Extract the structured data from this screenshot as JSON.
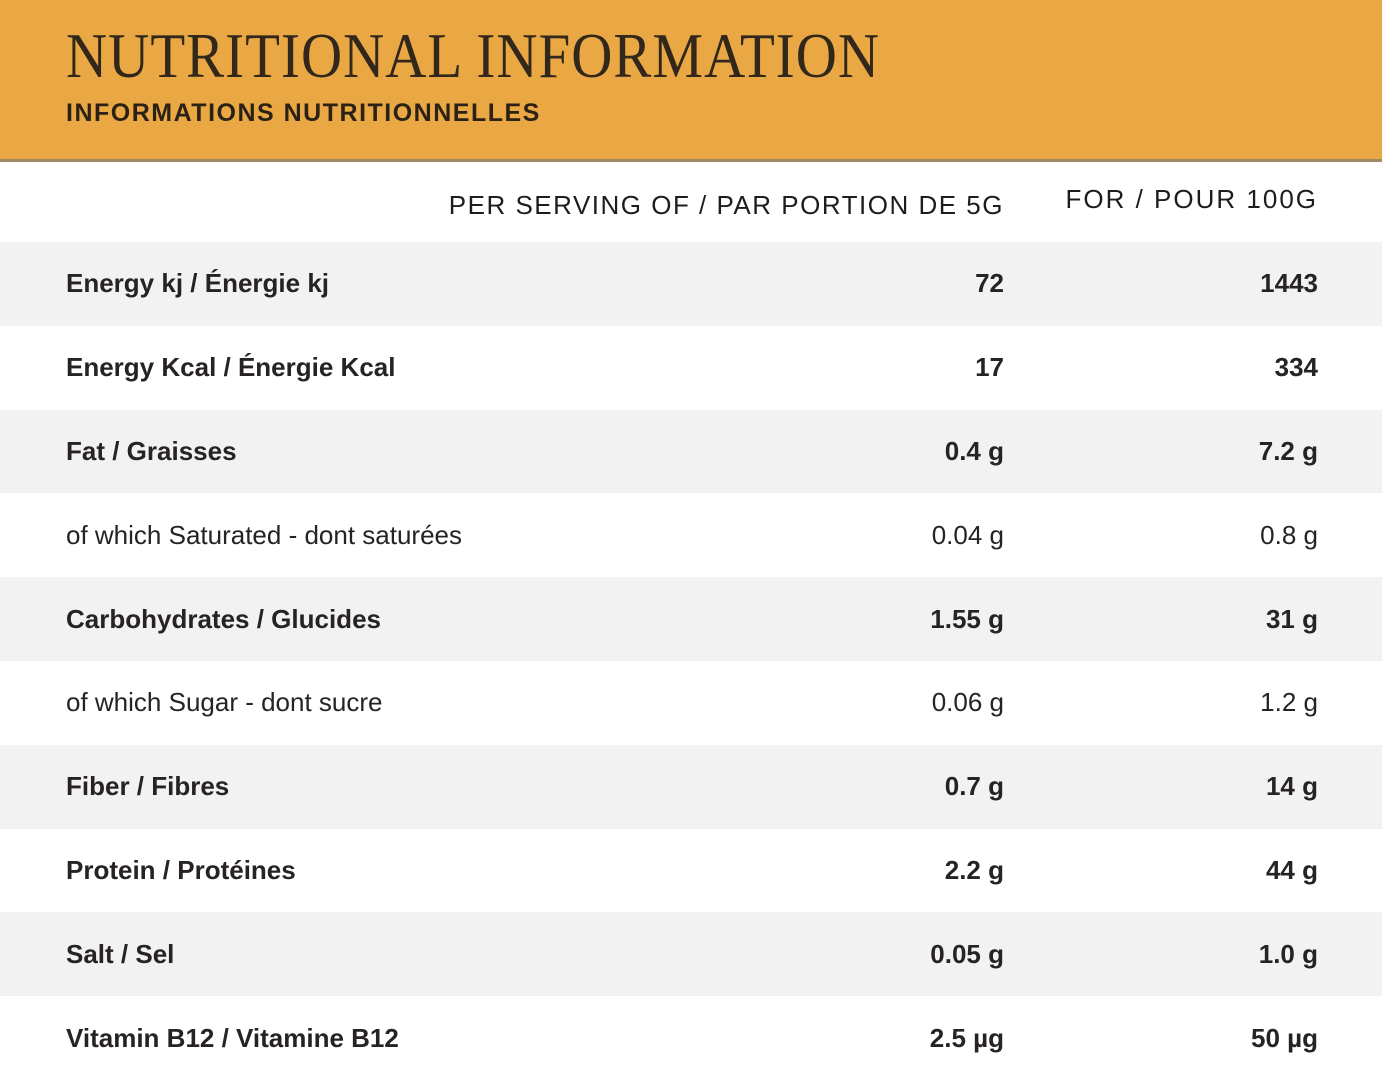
{
  "header": {
    "title": "NUTRITIONAL INFORMATION",
    "subtitle": "INFORMATIONS NUTRITIONNELLES"
  },
  "colors": {
    "banner_background": "#EAA845",
    "banner_border": "#9D8A66",
    "row_stripe": "#F3F2F2",
    "text_dark": "#272324",
    "title_text": "#31271A"
  },
  "table": {
    "column_headers": {
      "per_serving": "PER SERVING OF / PAR PORTION DE 5G",
      "per_100g": "FOR / POUR 100G"
    },
    "rows": [
      {
        "label": "Energy kj / Énergie kj",
        "per_serving": "72",
        "per_100g": "1443",
        "bold": true,
        "shaded": true
      },
      {
        "label": "Energy Kcal / Énergie Kcal",
        "per_serving": "17",
        "per_100g": "334",
        "bold": true,
        "shaded": false
      },
      {
        "label": "Fat / Graisses",
        "per_serving": "0.4 g",
        "per_100g": "7.2 g",
        "bold": true,
        "shaded": true
      },
      {
        "label": "of which Saturated - dont saturées",
        "per_serving": "0.04 g",
        "per_100g": "0.8 g",
        "bold": false,
        "shaded": false
      },
      {
        "label": "Carbohydrates / Glucides",
        "per_serving": "1.55 g",
        "per_100g": "31 g",
        "bold": true,
        "shaded": true
      },
      {
        "label": "of which Sugar - dont sucre",
        "per_serving": "0.06 g",
        "per_100g": "1.2 g",
        "bold": false,
        "shaded": false
      },
      {
        "label": "Fiber / Fibres",
        "per_serving": "0.7 g",
        "per_100g": "14 g",
        "bold": true,
        "shaded": true
      },
      {
        "label": "Protein / Protéines",
        "per_serving": "2.2 g",
        "per_100g": "44 g",
        "bold": true,
        "shaded": false
      },
      {
        "label": "Salt / Sel",
        "per_serving": "0.05 g",
        "per_100g": "1.0 g",
        "bold": true,
        "shaded": true
      },
      {
        "label": "Vitamin B12 / Vitamine B12",
        "per_serving": "2.5 µg",
        "per_100g": "50 µg",
        "bold": true,
        "shaded": false
      }
    ]
  }
}
